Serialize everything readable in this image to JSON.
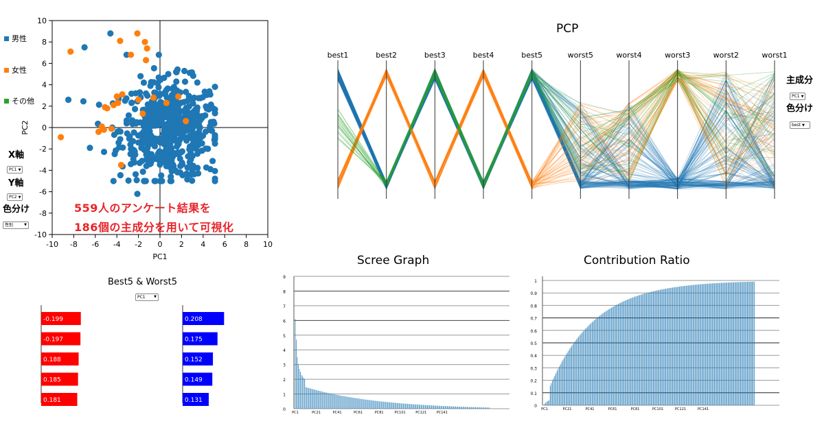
{
  "scatter": {
    "legend": [
      {
        "label": "男性",
        "color": "#1f77b4"
      },
      {
        "label": "女性",
        "color": "#ff7f0e"
      },
      {
        "label": "その他",
        "color": "#2ca02c"
      }
    ],
    "controls": {
      "x_label": "X軸",
      "x_value": "PC1",
      "y_label": "Y軸",
      "y_value": "PC2",
      "color_label": "色分け",
      "color_value": "性別"
    },
    "overlay_line1": "559人のアンケート結果を",
    "overlay_line2": "186個の主成分を用いて可視化"
  },
  "pcp": {
    "title": "PCP",
    "controls": {
      "component_label": "主成分",
      "component_value": "PC1",
      "color_label": "色分け",
      "color_value": "best"
    }
  },
  "bars": {
    "title": "Best5 & Worst5",
    "select_value": "PC1",
    "negative_color": "#ff0000",
    "positive_color": "#0000ff"
  },
  "scree": {
    "title": "Scree Graph"
  },
  "contribution": {
    "title": "Contribution Ratio"
  },
  "chart_data": [
    {
      "type": "scatter",
      "xlabel": "PC1",
      "ylabel": "PC2",
      "xlim": [
        -10,
        10
      ],
      "ylim": [
        -10,
        10
      ],
      "x_ticks": [
        "-10",
        "-8",
        "-6",
        "-4",
        "-2",
        "0",
        "2",
        "4",
        "6",
        "8",
        "10"
      ],
      "y_ticks": [
        "10",
        "8",
        "6",
        "4",
        "2",
        "0",
        "-2",
        "-4",
        "-6",
        "-8",
        "-10"
      ],
      "point_count": 559,
      "series": [
        {
          "name": "男性",
          "color": "#1f77b4",
          "highlight_points": [
            [
              -4.6,
              8.8
            ],
            [
              -7.0,
              7.5
            ],
            [
              -1.5,
              4.2
            ],
            [
              -3.1,
              6.8
            ],
            [
              1.5,
              5.2
            ],
            [
              -8.5,
              2.6
            ],
            [
              4.5,
              1.8
            ],
            [
              -6.5,
              -1.9
            ],
            [
              -2.1,
              -6.2
            ],
            [
              1.0,
              -4.6
            ]
          ]
        },
        {
          "name": "女性",
          "color": "#ff7f0e",
          "points": [
            [
              -8.3,
              7.1
            ],
            [
              -3.7,
              8.1
            ],
            [
              -2.1,
              8.8
            ],
            [
              -2.7,
              6.8
            ],
            [
              -1.4,
              8.0
            ],
            [
              -1.2,
              7.4
            ],
            [
              -1.3,
              6.3
            ],
            [
              -2.0,
              2.6
            ],
            [
              -4.0,
              2.9
            ],
            [
              -3.9,
              2.3
            ],
            [
              -4.9,
              1.8
            ],
            [
              -5.1,
              1.9
            ],
            [
              -4.5,
              -0.1
            ],
            [
              -5.7,
              -0.4
            ],
            [
              -5.4,
              0.1
            ],
            [
              -5.2,
              -0.2
            ],
            [
              -9.2,
              -0.9
            ],
            [
              -3.6,
              -3.5
            ],
            [
              -0.6,
              2.8
            ],
            [
              0.6,
              2.3
            ],
            [
              1.7,
              2.9
            ],
            [
              2.4,
              0.6
            ],
            [
              -1.6,
              1.3
            ],
            [
              -4.3,
              2.1
            ],
            [
              -3.5,
              3.1
            ]
          ]
        },
        {
          "name": "その他",
          "color": "#2ca02c",
          "points": []
        }
      ]
    },
    {
      "type": "parallel-coordinates",
      "title": "PCP",
      "axes": [
        "best1",
        "best2",
        "best3",
        "best4",
        "best5",
        "worst5",
        "worst4",
        "worst3",
        "worst2",
        "worst1"
      ]
    },
    {
      "type": "bar",
      "title": "Best5 & Worst5",
      "series": [
        {
          "values": [
            -0.199,
            -0.197,
            0.188,
            0.185,
            0.181
          ],
          "labels": [
            "-0.199",
            "-0.197",
            "0.188",
            "0.185",
            "0.181"
          ],
          "color": "#ff0000"
        },
        {
          "values": [
            0.208,
            0.175,
            0.152,
            0.149,
            0.131
          ],
          "labels": [
            "0.208",
            "0.175",
            "0.152",
            "0.149",
            "0.131"
          ],
          "color": "#0000ff"
        }
      ]
    },
    {
      "type": "bar",
      "title": "Scree Graph",
      "ylim": [
        0,
        9
      ],
      "y_ticks": [
        "0",
        "1",
        "2",
        "3",
        "4",
        "5",
        "6",
        "7",
        "8",
        "9"
      ],
      "x_ticks": [
        "PC1",
        "PC21",
        "PC41",
        "PC61",
        "PC81",
        "PC101",
        "PC121",
        "PC141"
      ],
      "first_values": [
        6.1,
        4.7,
        3.5,
        3.0,
        2.7,
        2.5,
        2.3,
        2.2,
        2.1,
        2.0
      ],
      "component_count": 186
    },
    {
      "type": "bar",
      "title": "Contribution Ratio",
      "ylim": [
        0,
        1
      ],
      "y_ticks": [
        "0",
        "0.1",
        "0.2",
        "0.3",
        "0.4",
        "0.5",
        "0.6",
        "0.7",
        "0.8",
        "0.9",
        "1"
      ],
      "x_ticks": [
        "PC1",
        "PC21",
        "PC41",
        "PC61",
        "PC81",
        "PC101",
        "PC121",
        "PC141"
      ],
      "first_values": [
        0.012,
        0.021,
        0.028,
        0.034,
        0.04
      ],
      "component_count": 186
    }
  ]
}
